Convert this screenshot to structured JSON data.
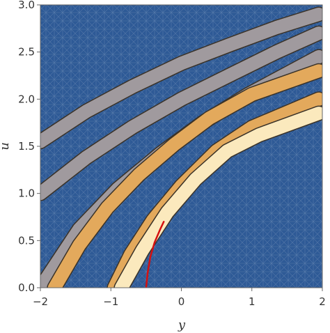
{
  "chart_data": {
    "type": "contour",
    "title": "",
    "xlabel": "y",
    "ylabel": "u",
    "xlim": [
      -2,
      2
    ],
    "ylim": [
      0,
      3
    ],
    "x_ticks": [
      -2,
      -1,
      0,
      1,
      2
    ],
    "x_tick_labels": [
      "−2",
      "−1",
      "0",
      "1",
      "2"
    ],
    "y_ticks": [
      0,
      0.5,
      1,
      1.5,
      2,
      2.5,
      3
    ],
    "y_tick_labels": [
      "0.0",
      "0.5",
      "1.0",
      "1.5",
      "2.0",
      "2.5",
      "3.0"
    ],
    "grid": false,
    "legend": "none",
    "colors": {
      "background": "#2e5a96",
      "band_low": "#a09a9e",
      "band_mid": "#e3a95c",
      "band_high": "#f2d08a",
      "band_peak": "#fbe9bd",
      "contour_line": "#3a3228",
      "highlight_curve": "#d41010"
    },
    "bands": [
      {
        "label": "band-outer-1",
        "x": [
          -2.0,
          -1.35,
          -0.7,
          0.0,
          0.7,
          1.35,
          1.95
        ],
        "y": [
          1.55,
          1.87,
          2.13,
          2.38,
          2.58,
          2.76,
          2.9
        ],
        "fill": "#a09a9e"
      },
      {
        "label": "band-outer-2",
        "x": [
          -2.0,
          -1.35,
          -0.7,
          0.0,
          0.7,
          1.35,
          1.95
        ],
        "y": [
          1.0,
          1.38,
          1.7,
          2.0,
          2.26,
          2.5,
          2.7
        ],
        "fill": "#a09a9e"
      },
      {
        "label": "band-outer-3",
        "x": [
          -2.0,
          -1.45,
          -0.9,
          -0.3,
          0.3,
          0.95,
          1.95
        ],
        "y": [
          0.0,
          0.62,
          1.05,
          1.42,
          1.75,
          2.05,
          2.45
        ],
        "fill": "#a09a9e"
      },
      {
        "label": "band-orange-1",
        "x": [
          -1.8,
          -1.45,
          -1.05,
          -0.6,
          -0.1,
          0.4,
          1.0,
          1.95
        ],
        "y": [
          0.0,
          0.45,
          0.85,
          1.2,
          1.52,
          1.8,
          2.05,
          2.3
        ],
        "fill": "#e3a95c"
      },
      {
        "label": "band-orange-2",
        "x": [
          -0.95,
          -0.72,
          -0.4,
          0.0,
          0.5,
          1.0,
          1.95
        ],
        "y": [
          0.0,
          0.35,
          0.72,
          1.08,
          1.45,
          1.7,
          2.0
        ],
        "fill": "#e3a95c"
      },
      {
        "label": "band-inner",
        "x": [
          -0.85,
          -0.55,
          -0.2,
          0.2,
          0.65,
          1.1,
          1.95
        ],
        "y": [
          0.0,
          0.4,
          0.8,
          1.15,
          1.45,
          1.62,
          1.85
        ],
        "fill": "#fbe9bd"
      }
    ],
    "curves": [
      {
        "label": "highlight-curve",
        "x": [
          -0.5,
          -0.48,
          -0.44,
          -0.38,
          -0.3,
          -0.25
        ],
        "y": [
          0.0,
          0.15,
          0.33,
          0.48,
          0.62,
          0.7
        ],
        "color": "#d41010"
      }
    ]
  }
}
